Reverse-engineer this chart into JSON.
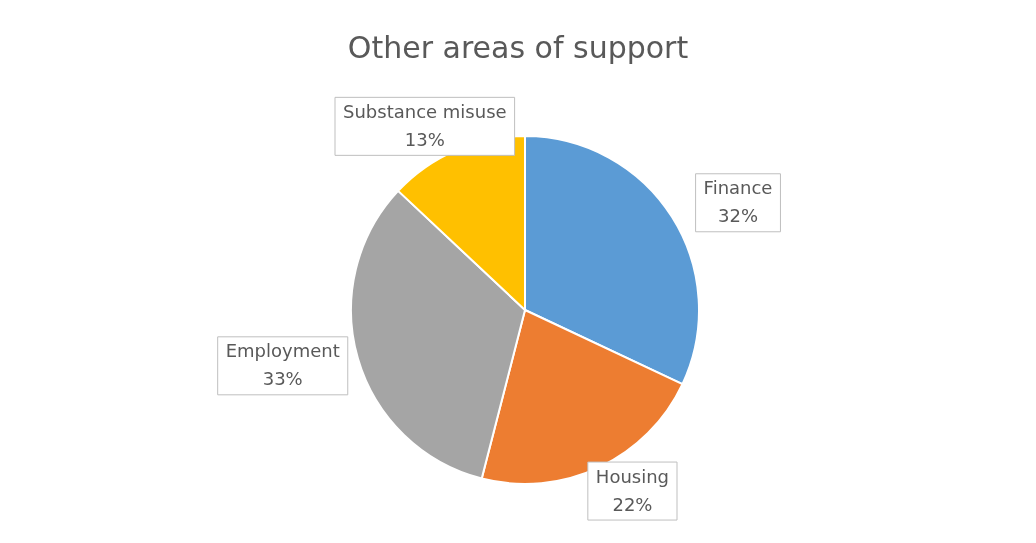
{
  "chart_data": {
    "type": "pie",
    "title": "Other areas of support",
    "categories": [
      "Finance",
      "Housing",
      "Employment",
      "Substance misuse"
    ],
    "values": [
      32,
      22,
      33,
      13
    ],
    "colors": [
      "#5b9bd5",
      "#ed7d31",
      "#a5a5a5",
      "#ffc000"
    ],
    "value_labels": [
      "32%",
      "22%",
      "33%",
      "13%"
    ],
    "legend": false
  }
}
